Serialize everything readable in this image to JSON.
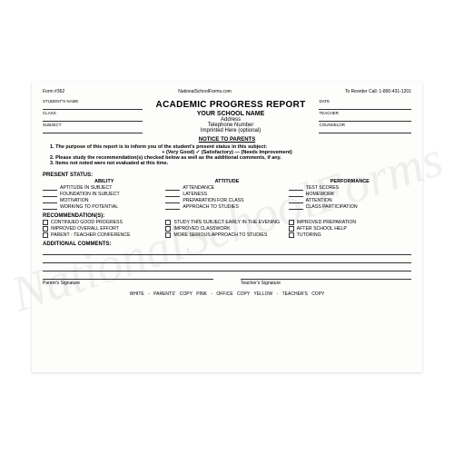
{
  "watermark": "NationalSchoolForms",
  "meta": {
    "form_no": "Form #362",
    "site": "NationalSchoolForms.com",
    "reorder": "To Reorder Call: 1-800-431-1201"
  },
  "left_fields": [
    "STUDENT'S NAME",
    "CLASS",
    "SUBJECT"
  ],
  "right_fields": [
    "DATE",
    "TEACHER",
    "COUNSELOR"
  ],
  "title": "ACADEMIC PROGRESS REPORT",
  "school": {
    "name": "YOUR SCHOOL NAME",
    "address": "Address",
    "phone": "Telephone Number",
    "imprint": "Imprinted Here (optional)"
  },
  "notice": {
    "heading": "NOTICE TO PARENTS",
    "line1": "1. The purpose of this report is to inform you of the student's present status in this subject:",
    "legend": "+   (Very Good)            ✓   (Satisfactory)            —   (Needs Improvement)",
    "line2": "2. Please study the recommendation(s) checked below as well as the additional comments, if any.",
    "line3": "3. Items not noted were not evaluated at this time."
  },
  "present_status": {
    "label": "PRESENT STATUS:",
    "ability": {
      "head": "ABILITY",
      "items": [
        "APTITUDE IN SUBJECT",
        "FOUNDATION IN SUBJECT",
        "MOTIVATION",
        "WORKING TO POTENTIAL"
      ]
    },
    "attitude": {
      "head": "ATTITUDE",
      "items": [
        "ATTENDANCE",
        "LATENESS",
        "PREPARATION FOR CLASS",
        "APPROACH TO STUDIES"
      ]
    },
    "performance": {
      "head": "PERFORMANCE",
      "items": [
        "TEST SCORES",
        "HOMEWORK",
        "ATTENTION",
        "CLASS PARTICIPATION"
      ]
    }
  },
  "recommendations": {
    "label": "RECOMMENDATION(S):",
    "col1": [
      "CONTINUED GOOD PROGRESS",
      "IMPROVED OVERALL EFFORT",
      "PARENT - TEACHER CONFERENCE"
    ],
    "col2": [
      "STUDY THIS SUBJECT EARLY IN THE EVENING",
      "IMPROVED CLASSWORK",
      "MORE SERIOUS APPROACH TO STUDIES"
    ],
    "col3": [
      "IMPROVED PREPARATION",
      "AFTER SCHOOL HELP",
      "TUTORING"
    ]
  },
  "comments_label": "ADDITIONAL COMMENTS:",
  "sig": {
    "parent": "Parent's Signature",
    "teacher": "Teacher's Signature"
  },
  "copies": "WHITE - PARENTS' COPY          PINK - OFFICE COPY          YELLOW - TEACHER'S COPY"
}
